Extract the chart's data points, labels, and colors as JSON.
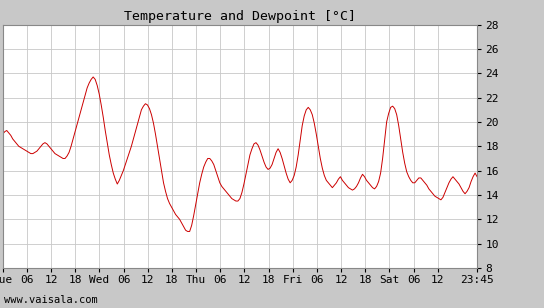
{
  "title": "Temperature and Dewpoint [°C]",
  "watermark": "www.vaisala.com",
  "ylim": [
    8,
    28
  ],
  "yticks": [
    8,
    10,
    12,
    14,
    16,
    18,
    20,
    22,
    24,
    26,
    28
  ],
  "line_color": "#cc0000",
  "bg_color": "#ffffff",
  "outer_bg": "#c8c8c8",
  "grid_color": "#c8c8c8",
  "title_fontsize": 9.5,
  "tick_fontsize": 8,
  "watermark_fontsize": 7.5,
  "x_tick_labels": [
    "Tue",
    "06",
    "12",
    "18",
    "Wed",
    "06",
    "12",
    "18",
    "Thu",
    "06",
    "12",
    "18",
    "Fri",
    "06",
    "12",
    "18",
    "Sat",
    "06",
    "12",
    "23:45"
  ],
  "x_tick_positions": [
    0,
    6,
    12,
    18,
    24,
    30,
    36,
    42,
    48,
    54,
    60,
    66,
    72,
    78,
    84,
    90,
    96,
    102,
    108,
    117.75
  ],
  "x_total": 117.75,
  "data_y": [
    19.0,
    19.2,
    19.3,
    19.1,
    18.9,
    18.6,
    18.4,
    18.2,
    18.0,
    17.9,
    17.8,
    17.7,
    17.6,
    17.5,
    17.4,
    17.4,
    17.5,
    17.6,
    17.8,
    18.0,
    18.2,
    18.3,
    18.2,
    18.0,
    17.8,
    17.6,
    17.4,
    17.3,
    17.2,
    17.1,
    17.0,
    17.0,
    17.2,
    17.5,
    18.0,
    18.6,
    19.2,
    19.8,
    20.4,
    21.0,
    21.6,
    22.2,
    22.8,
    23.2,
    23.5,
    23.7,
    23.5,
    23.0,
    22.3,
    21.4,
    20.4,
    19.3,
    18.3,
    17.3,
    16.5,
    15.8,
    15.3,
    14.9,
    15.2,
    15.6,
    16.0,
    16.5,
    17.0,
    17.5,
    18.0,
    18.6,
    19.2,
    19.8,
    20.4,
    21.0,
    21.3,
    21.5,
    21.4,
    21.1,
    20.6,
    19.9,
    19.0,
    18.0,
    17.0,
    16.0,
    15.0,
    14.3,
    13.7,
    13.3,
    13.0,
    12.7,
    12.4,
    12.2,
    12.0,
    11.7,
    11.4,
    11.1,
    11.0,
    11.0,
    11.5,
    12.3,
    13.2,
    14.1,
    15.0,
    15.7,
    16.3,
    16.7,
    17.0,
    17.0,
    16.8,
    16.5,
    16.0,
    15.5,
    15.0,
    14.7,
    14.5,
    14.3,
    14.1,
    13.9,
    13.7,
    13.6,
    13.5,
    13.5,
    13.7,
    14.2,
    14.9,
    15.7,
    16.5,
    17.3,
    17.8,
    18.2,
    18.3,
    18.1,
    17.7,
    17.2,
    16.7,
    16.3,
    16.1,
    16.2,
    16.5,
    17.0,
    17.5,
    17.8,
    17.5,
    17.0,
    16.4,
    15.8,
    15.3,
    15.0,
    15.2,
    15.6,
    16.3,
    17.3,
    18.5,
    19.7,
    20.5,
    21.0,
    21.2,
    21.0,
    20.6,
    19.9,
    19.0,
    18.0,
    17.0,
    16.2,
    15.6,
    15.2,
    15.0,
    14.8,
    14.6,
    14.8,
    15.0,
    15.3,
    15.5,
    15.2,
    15.0,
    14.8,
    14.6,
    14.5,
    14.4,
    14.5,
    14.7,
    15.0,
    15.4,
    15.7,
    15.5,
    15.2,
    15.0,
    14.8,
    14.6,
    14.5,
    14.7,
    15.1,
    15.8,
    17.0,
    18.5,
    20.0,
    20.7,
    21.2,
    21.3,
    21.1,
    20.6,
    19.7,
    18.6,
    17.5,
    16.6,
    15.9,
    15.5,
    15.2,
    15.0,
    15.0,
    15.2,
    15.4,
    15.4,
    15.2,
    15.0,
    14.8,
    14.5,
    14.3,
    14.1,
    13.9,
    13.8,
    13.7,
    13.6,
    13.8,
    14.2,
    14.6,
    15.0,
    15.3,
    15.5,
    15.3,
    15.1,
    14.9,
    14.6,
    14.3,
    14.1,
    14.3,
    14.6,
    15.1,
    15.5,
    15.8,
    15.5
  ]
}
